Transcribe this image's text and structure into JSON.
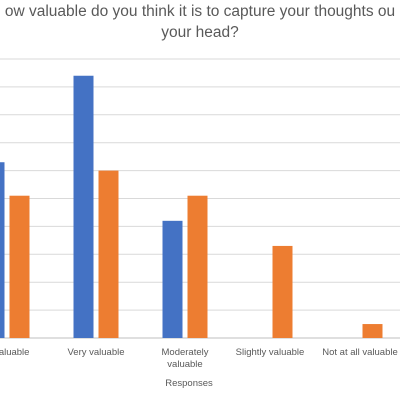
{
  "chart_data": {
    "type": "bar",
    "title_lines": [
      "ow valuable do you think it is to capture your thoughts ou",
      "your head?"
    ],
    "xlabel": "Responses",
    "ylabel": "",
    "categories": [
      [
        "ly valuable"
      ],
      [
        "Very valuable"
      ],
      [
        "Moderately",
        "valuable"
      ],
      [
        "Slightly valuable"
      ],
      [
        "Not at all valuable"
      ]
    ],
    "series": [
      {
        "color": "#4472c4",
        "values": [
          63,
          94,
          42,
          0,
          0
        ]
      },
      {
        "color": "#ed7d31",
        "values": [
          51,
          60,
          51,
          33,
          5
        ]
      }
    ],
    "ylim": [
      0,
      100
    ],
    "grid": true,
    "legend": "none"
  }
}
